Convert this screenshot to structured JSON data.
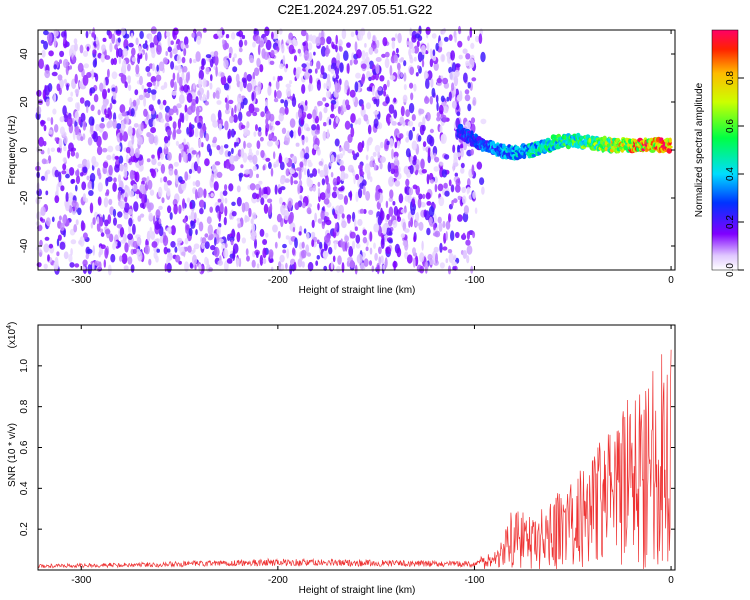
{
  "title": "C2E1.2024.297.05.51.G22",
  "chart_data": [
    {
      "type": "heatmap",
      "xlabel": "Height of straight line (km)",
      "ylabel": "Frequency (Hz)",
      "xlim": [
        -322,
        2
      ],
      "ylim": [
        -50,
        50
      ],
      "xticks": [
        -300,
        -200,
        -100,
        0
      ],
      "yticks": [
        -40,
        -20,
        0,
        20,
        40
      ],
      "noise_region_x": [
        -322,
        -100
      ],
      "signal_trace": {
        "x": [
          -108,
          -100,
          -90,
          -80,
          -70,
          -60,
          -50,
          -40,
          -30,
          -20,
          -10,
          0
        ],
        "y": [
          8,
          4,
          0,
          -1,
          0,
          3,
          4,
          3,
          2,
          2,
          2,
          2
        ],
        "amplitude": [
          0.25,
          0.3,
          0.35,
          0.4,
          0.45,
          0.5,
          0.55,
          0.6,
          0.7,
          0.8,
          0.9,
          0.95
        ]
      },
      "colorbar": {
        "label": "Normalized spectral amplitude",
        "range": [
          0.0,
          1.0
        ],
        "ticks": [
          0.0,
          0.2,
          0.4,
          0.6,
          0.8
        ]
      }
    },
    {
      "type": "line",
      "xlabel": "Height of straight line (km)",
      "ylabel": "SNR (10 * v/v)",
      "exponent_label": "(x10",
      "exponent_power": "4",
      "exponent_close": ")",
      "xlim": [
        -322,
        2
      ],
      "ylim": [
        0,
        1.2
      ],
      "xticks": [
        -300,
        -200,
        -100,
        0
      ],
      "yticks": [
        0.2,
        0.4,
        0.6,
        0.8,
        1.0
      ],
      "color": "#ee3333",
      "series": [
        {
          "x": [
            -322,
            -250,
            -200,
            -150,
            -100,
            -90,
            -80,
            -70,
            -60,
            -50,
            -40,
            -30,
            -20,
            -10,
            0
          ],
          "y": [
            0.02,
            0.03,
            0.04,
            0.035,
            0.03,
            0.08,
            0.25,
            0.2,
            0.3,
            0.35,
            0.5,
            0.55,
            0.7,
            0.8,
            0.95
          ]
        }
      ]
    }
  ]
}
